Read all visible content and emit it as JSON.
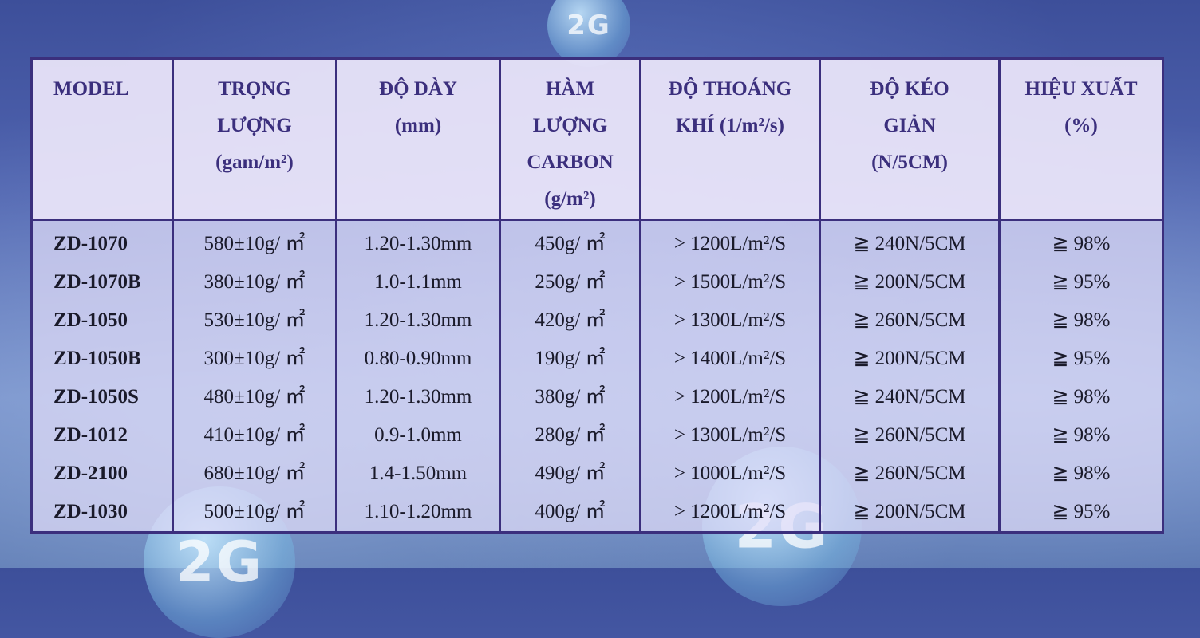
{
  "watermark": {
    "text": "2G"
  },
  "table": {
    "headers": [
      {
        "lines": [
          "MODEL"
        ]
      },
      {
        "lines": [
          "TRỌNG",
          "LƯỢNG",
          "(gam/m²)"
        ]
      },
      {
        "lines": [
          "ĐỘ DÀY",
          "(mm)"
        ]
      },
      {
        "lines": [
          "HÀM",
          "LƯỢNG",
          "CARBON",
          "(g/m²)"
        ]
      },
      {
        "lines": [
          "ĐỘ THOÁNG",
          "KHÍ (1/m²/s)"
        ]
      },
      {
        "lines": [
          "ĐỘ KÉO",
          "GIẢN",
          "(N/5CM)"
        ]
      },
      {
        "lines": [
          "HIỆU XUẤT",
          "(%)"
        ]
      }
    ],
    "rows": [
      [
        "ZD-1070",
        "580±10g/ ㎡",
        "1.20-1.30mm",
        "450g/ ㎡",
        "> 1200L/m²/S",
        "≧ 240N/5CM",
        "≧ 98%"
      ],
      [
        "ZD-1070B",
        "380±10g/ ㎡",
        "1.0-1.1mm",
        "250g/ ㎡",
        "> 1500L/m²/S",
        "≧ 200N/5CM",
        "≧ 95%"
      ],
      [
        "ZD-1050",
        "530±10g/ ㎡",
        "1.20-1.30mm",
        "420g/ ㎡",
        "> 1300L/m²/S",
        "≧ 260N/5CM",
        "≧ 98%"
      ],
      [
        "ZD-1050B",
        "300±10g/ ㎡",
        "0.80-0.90mm",
        "190g/ ㎡",
        "> 1400L/m²/S",
        "≧ 200N/5CM",
        "≧ 95%"
      ],
      [
        "ZD-1050S",
        "480±10g/ ㎡",
        "1.20-1.30mm",
        "380g/ ㎡",
        "> 1200L/m²/S",
        "≧ 240N/5CM",
        "≧ 98%"
      ],
      [
        "ZD-1012",
        "410±10g/ ㎡",
        "0.9-1.0mm",
        "280g/ ㎡",
        "> 1300L/m²/S",
        "≧ 260N/5CM",
        "≧ 98%"
      ],
      [
        "ZD-2100",
        "680±10g/ ㎡",
        "1.4-1.50mm",
        "490g/ ㎡",
        "> 1000L/m²/S",
        "≧ 260N/5CM",
        "≧ 98%"
      ],
      [
        "ZD-1030",
        "500±10g/ ㎡",
        "1.10-1.20mm",
        "400g/ ㎡",
        "> 1200L/m²/S",
        "≧ 200N/5CM",
        "≧ 95%"
      ]
    ]
  },
  "colors": {
    "border": "#3b2f7d",
    "header_text": "#3b2f7d",
    "body_text": "#1a1a2a"
  }
}
